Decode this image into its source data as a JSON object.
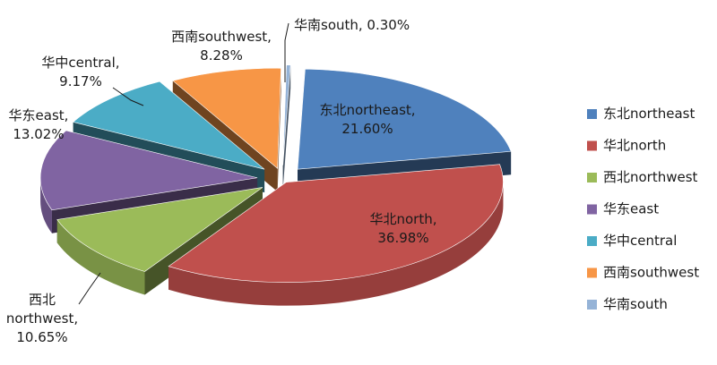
{
  "chart_data": {
    "type": "pie",
    "title": "",
    "legend_position": "right",
    "categories": [
      "东北northeast",
      "华北north",
      "西北northwest",
      "华东east",
      "华中central",
      "西南southwest",
      "华南south"
    ],
    "values": [
      21.6,
      36.98,
      10.65,
      13.02,
      9.17,
      8.28,
      0.3
    ],
    "value_labels": [
      "21.60%",
      "36.98%",
      "10.65%",
      "13.02%",
      "9.17%",
      "8.28%",
      "0.30%"
    ],
    "colors": [
      "#4f81bd",
      "#c0504d",
      "#9bbb59",
      "#8064a2",
      "#4bacc6",
      "#f79646",
      "#95b3d7"
    ],
    "slice_labels": [
      [
        "东北northeast,",
        "21.60%"
      ],
      [
        "华北north,",
        "36.98%"
      ],
      [
        "西北",
        "northwest,",
        "10.65%"
      ],
      [
        "华东east,",
        "13.02%"
      ],
      [
        "华中central,",
        "9.17%"
      ],
      [
        "西南southwest,",
        "8.28%"
      ],
      [
        "华南south, 0.30%"
      ]
    ]
  }
}
